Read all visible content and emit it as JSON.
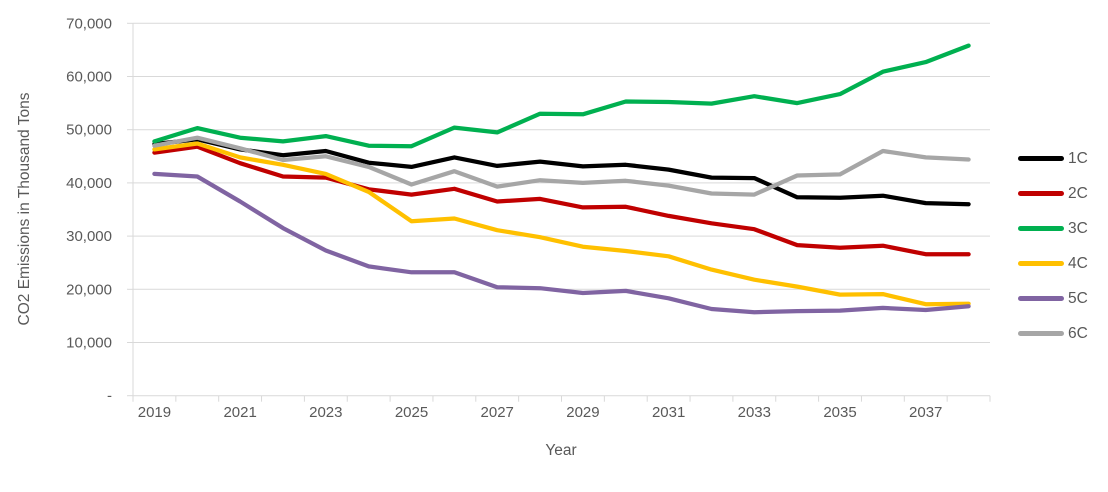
{
  "chart_data": {
    "type": "line",
    "xlabel": "Year",
    "ylabel": "CO2 Emissions in Thousand Tons",
    "years": [
      2019,
      2020,
      2021,
      2022,
      2023,
      2024,
      2025,
      2026,
      2027,
      2028,
      2029,
      2030,
      2031,
      2032,
      2033,
      2034,
      2035,
      2036,
      2037,
      2038
    ],
    "x_tick_labels": [
      "2019",
      "2021",
      "2023",
      "2025",
      "2027",
      "2029",
      "2031",
      "2033",
      "2035",
      "2037"
    ],
    "y_tick_labels_top_to_bottom": [
      "70,000",
      "60,000",
      "50,000",
      "40,000",
      "30,000",
      "20,000",
      "10,000",
      "-"
    ],
    "ylim": [
      0,
      70000
    ],
    "y_step": 10000,
    "grid": true,
    "legend_position": "right",
    "series": [
      {
        "name": "1C",
        "color": "#000000",
        "values": [
          47300,
          48200,
          46300,
          45200,
          46000,
          43800,
          43000,
          44800,
          43200,
          44000,
          43100,
          43400,
          42500,
          41000,
          40900,
          37300,
          37200,
          37600,
          36200,
          36000
        ]
      },
      {
        "name": "2C",
        "color": "#C00000",
        "values": [
          45700,
          46800,
          43700,
          41200,
          41000,
          38800,
          37800,
          38900,
          36500,
          37000,
          35400,
          35500,
          33800,
          32400,
          31300,
          28300,
          27800,
          28200,
          26600,
          26600
        ]
      },
      {
        "name": "3C",
        "color": "#00B050",
        "values": [
          47800,
          50300,
          48500,
          47800,
          48800,
          47000,
          46900,
          50400,
          49500,
          53000,
          52900,
          55300,
          55200,
          54900,
          56300,
          55000,
          56700,
          60900,
          62700,
          65800
        ]
      },
      {
        "name": "4C",
        "color": "#FFC000",
        "values": [
          46300,
          47400,
          44800,
          43400,
          41700,
          38300,
          32800,
          33300,
          31100,
          29800,
          28000,
          27200,
          26200,
          23700,
          21800,
          20500,
          19000,
          19100,
          17200,
          17300
        ]
      },
      {
        "name": "5C",
        "color": "#8064A2",
        "values": [
          41700,
          41200,
          36500,
          31500,
          27300,
          24300,
          23200,
          23200,
          20400,
          20200,
          19300,
          19700,
          18300,
          16300,
          15700,
          15900,
          16000,
          16500,
          16100,
          16800
        ]
      },
      {
        "name": "6C",
        "color": "#A6A6A6",
        "values": [
          47000,
          48500,
          46500,
          44300,
          45000,
          43000,
          39700,
          42200,
          39300,
          40500,
          40000,
          40400,
          39500,
          38000,
          37800,
          41400,
          41600,
          46000,
          44800,
          44400
        ]
      }
    ]
  },
  "colors": {
    "grid": "#D9D9D9",
    "axis_text": "#595959"
  }
}
